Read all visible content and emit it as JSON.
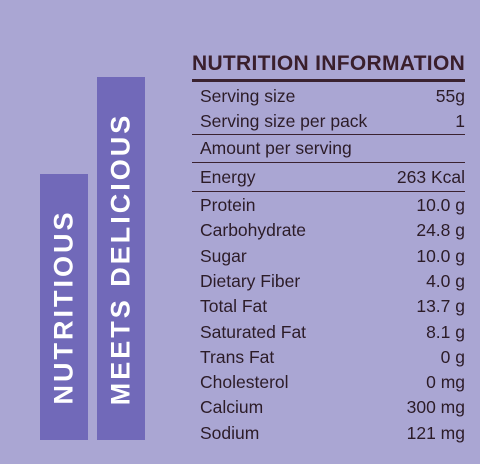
{
  "side_text": [
    "NUTRITIOUS",
    "MEETS DELICIOUS"
  ],
  "panel": {
    "title": "NUTRITION INFORMATION",
    "serving_rows": [
      [
        "Serving size",
        "55g"
      ],
      [
        "Serving size per pack",
        "1"
      ]
    ],
    "amount_header": "Amount per serving",
    "energy_row": [
      "Energy",
      "263 Kcal"
    ],
    "nutrient_rows": [
      [
        "Protein",
        "10.0 g"
      ],
      [
        "Carbohydrate",
        "24.8 g"
      ],
      [
        "Sugar",
        "10.0 g"
      ],
      [
        "Dietary Fiber",
        "4.0 g"
      ],
      [
        "Total Fat",
        "13.7 g"
      ],
      [
        "Saturated Fat",
        "8.1 g"
      ],
      [
        "Trans Fat",
        "0 g"
      ],
      [
        "Cholesterol",
        "0 mg"
      ],
      [
        "Calcium",
        "300 mg"
      ],
      [
        "Sodium",
        "121 mg"
      ]
    ]
  }
}
